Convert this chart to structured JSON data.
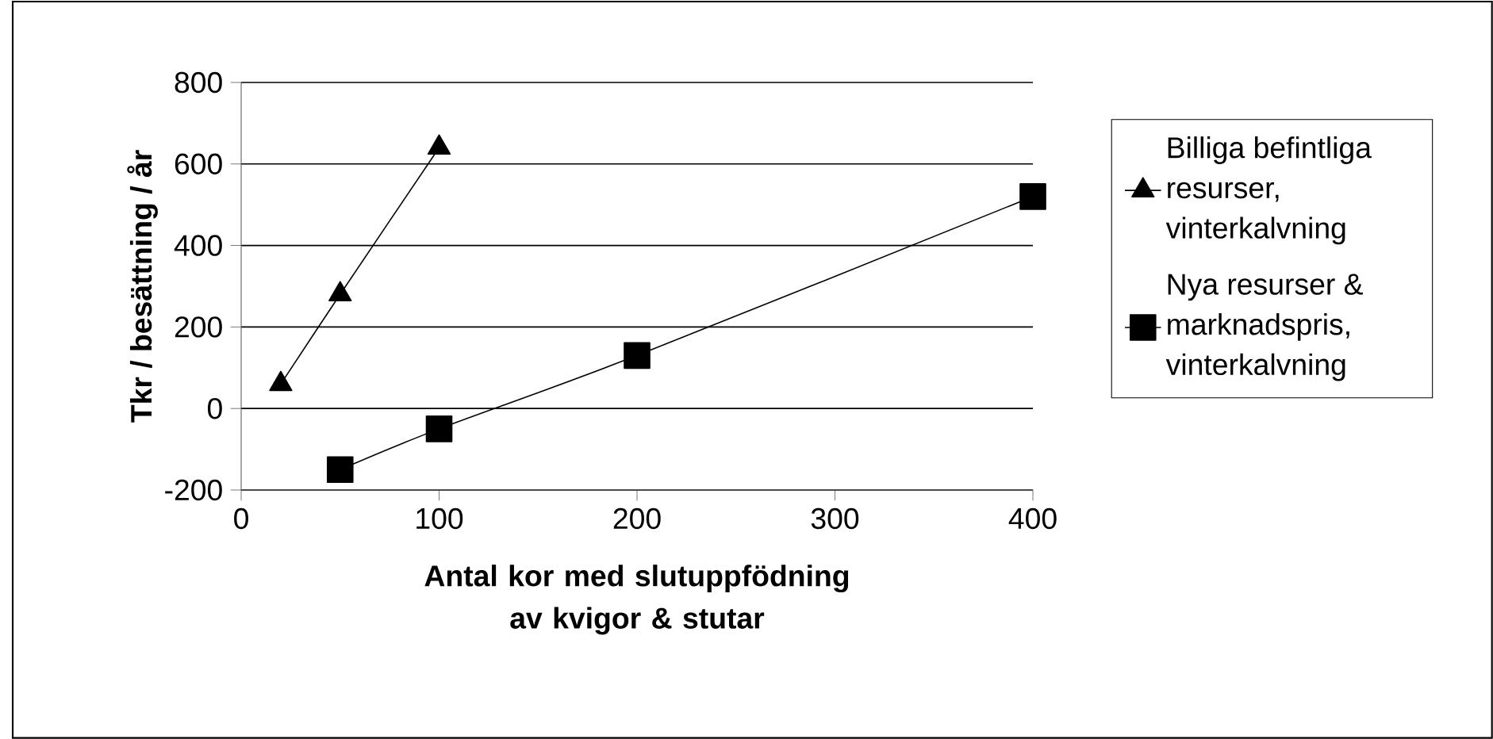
{
  "chart_data": {
    "type": "line",
    "xlabel": "Antal kor med slutuppfödning av kvigor & stutar",
    "ylabel": "Tkr / besättning / år",
    "xlim": [
      0,
      400
    ],
    "xticks": [
      0,
      100,
      200,
      300,
      400
    ],
    "ylim": [
      -200,
      800
    ],
    "yticks": [
      -200,
      0,
      200,
      400,
      600,
      800
    ],
    "grid": "y",
    "legend": "right",
    "line_style": "solid",
    "series": [
      {
        "name": "Billiga befintliga resurser, vinterkalvning",
        "color": "#000000",
        "marker": "triangle",
        "x": [
          20,
          50,
          100
        ],
        "values": [
          60,
          280,
          640
        ]
      },
      {
        "name": "Nya resurser & marknadspris, vinterkalvning",
        "color": "#000000",
        "marker": "square",
        "x": [
          50,
          100,
          200,
          400
        ],
        "values": [
          -150,
          -50,
          130,
          520
        ]
      }
    ]
  }
}
